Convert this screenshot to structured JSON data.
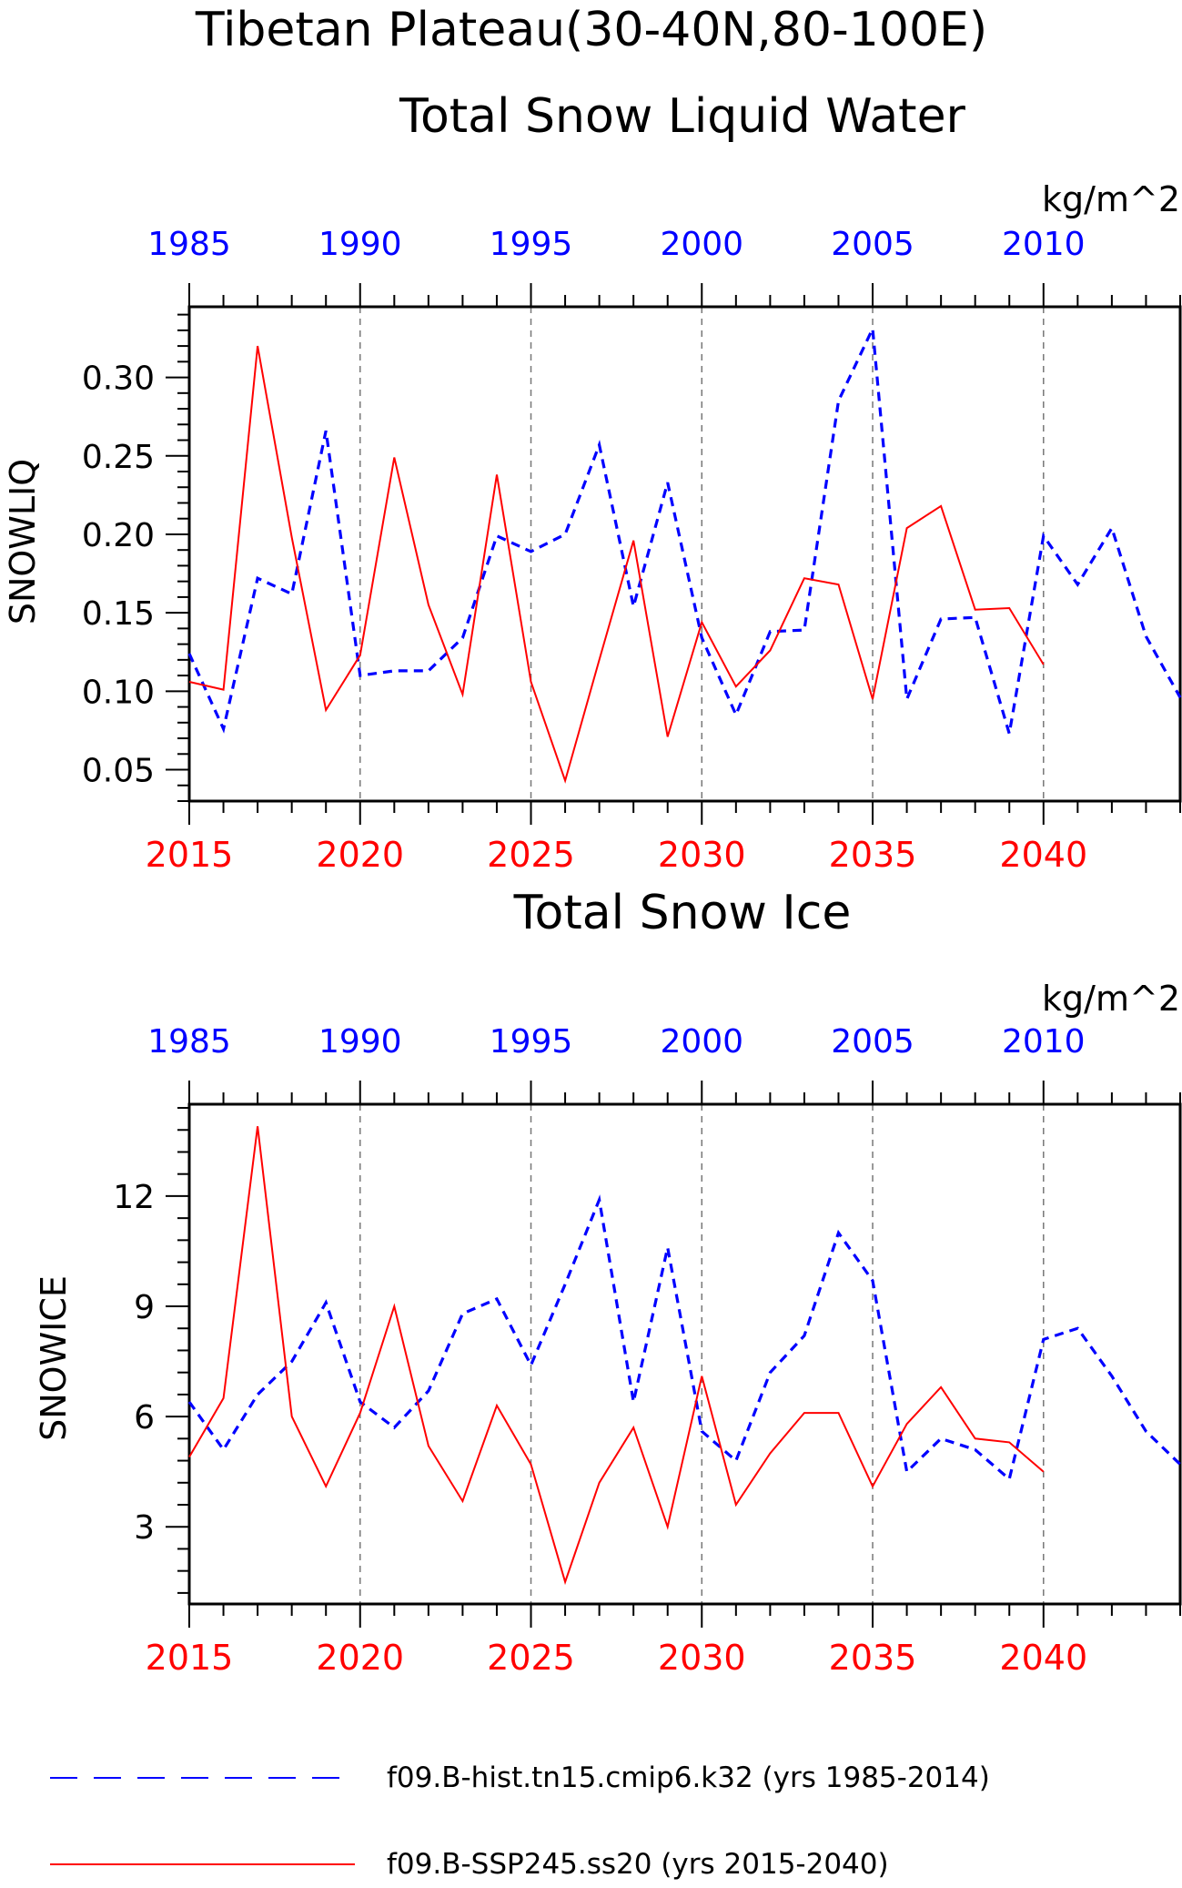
{
  "page": {
    "title_line1": "Tibetan Plateau(30-40N,80-100E)"
  },
  "chart_data": [
    {
      "type": "line",
      "title": "Total Snow Liquid Water",
      "units": "kg/m^2",
      "ylabel": "SNOWLIQ",
      "xlim": [
        2015,
        2044
      ],
      "ylim": [
        0.03,
        0.345
      ],
      "yticks": [
        0.05,
        0.1,
        0.15,
        0.2,
        0.25,
        0.3
      ],
      "ytick_labels": [
        "0.05",
        "0.10",
        "0.15",
        "0.20",
        "0.25",
        "0.30"
      ],
      "bottom_axis": {
        "ticks": [
          2015,
          2020,
          2025,
          2030,
          2035,
          2040
        ],
        "labels": [
          "2015",
          "2020",
          "2025",
          "2030",
          "2035",
          "2040"
        ],
        "color": "#ff0000"
      },
      "top_axis": {
        "ticks": [
          1985,
          1990,
          1995,
          2000,
          2005,
          2010
        ],
        "labels": [
          "1985",
          "1990",
          "1995",
          "2000",
          "2005",
          "2010"
        ],
        "color": "#0000ff",
        "offset": -30
      },
      "vertical_gridlines": [
        2020,
        2025,
        2030,
        2035,
        2040
      ],
      "series": [
        {
          "name": "f09.B-hist.tn15.cmip6.k32 (yrs 1985-2014)",
          "color": "#0000ff",
          "style": "dashed",
          "x": [
            1985,
            1986,
            1987,
            1988,
            1989,
            1990,
            1991,
            1992,
            1993,
            1994,
            1995,
            1996,
            1997,
            1998,
            1999,
            2000,
            2001,
            2002,
            2003,
            2004,
            2005,
            2006,
            2007,
            2008,
            2009,
            2010,
            2011,
            2012,
            2013,
            2014
          ],
          "values": [
            0.124,
            0.076,
            0.172,
            0.162,
            0.266,
            0.11,
            0.113,
            0.113,
            0.134,
            0.199,
            0.189,
            0.2,
            0.257,
            0.154,
            0.233,
            0.134,
            0.085,
            0.138,
            0.139,
            0.285,
            0.331,
            0.095,
            0.146,
            0.147,
            0.073,
            0.199,
            0.168,
            0.204,
            0.135,
            0.096
          ]
        },
        {
          "name": "f09.B-SSP245.ss20 (yrs 2015-2040)",
          "color": "#ff0000",
          "style": "solid",
          "x": [
            2015,
            2016,
            2017,
            2018,
            2019,
            2020,
            2021,
            2022,
            2023,
            2024,
            2025,
            2026,
            2027,
            2028,
            2029,
            2030,
            2031,
            2032,
            2033,
            2034,
            2035,
            2036,
            2037,
            2038,
            2039,
            2040
          ],
          "values": [
            0.106,
            0.101,
            0.32,
            0.198,
            0.088,
            0.123,
            0.249,
            0.155,
            0.098,
            0.238,
            0.106,
            0.043,
            0.12,
            0.196,
            0.071,
            0.144,
            0.103,
            0.126,
            0.172,
            0.168,
            0.095,
            0.204,
            0.218,
            0.152,
            0.153,
            0.117
          ]
        }
      ]
    },
    {
      "type": "line",
      "title": "Total Snow Ice",
      "units": "kg/m^2",
      "ylabel": "SNOWICE",
      "xlim": [
        2015,
        2044
      ],
      "ylim": [
        0.9,
        14.5
      ],
      "yticks": [
        3,
        6,
        9,
        12
      ],
      "ytick_labels": [
        "3",
        "6",
        "9",
        "12"
      ],
      "bottom_axis": {
        "ticks": [
          2015,
          2020,
          2025,
          2030,
          2035,
          2040
        ],
        "labels": [
          "2015",
          "2020",
          "2025",
          "2030",
          "2035",
          "2040"
        ],
        "color": "#ff0000"
      },
      "top_axis": {
        "ticks": [
          1985,
          1990,
          1995,
          2000,
          2005,
          2010
        ],
        "labels": [
          "1985",
          "1990",
          "1995",
          "2000",
          "2005",
          "2010"
        ],
        "color": "#0000ff",
        "offset": -30
      },
      "vertical_gridlines": [
        2020,
        2025,
        2030,
        2035,
        2040
      ],
      "series": [
        {
          "name": "f09.B-hist.tn15.cmip6.k32 (yrs 1985-2014)",
          "color": "#0000ff",
          "style": "dashed",
          "x": [
            1985,
            1986,
            1987,
            1988,
            1989,
            1990,
            1991,
            1992,
            1993,
            1994,
            1995,
            1996,
            1997,
            1998,
            1999,
            2000,
            2001,
            2002,
            2003,
            2004,
            2005,
            2006,
            2007,
            2008,
            2009,
            2010,
            2011,
            2012,
            2013,
            2014
          ],
          "values": [
            6.4,
            5.1,
            6.6,
            7.5,
            9.1,
            6.4,
            5.7,
            6.7,
            8.8,
            9.2,
            7.4,
            9.6,
            11.9,
            6.4,
            10.6,
            5.6,
            4.8,
            7.2,
            8.2,
            11.0,
            9.7,
            4.5,
            5.4,
            5.1,
            4.3,
            8.1,
            8.4,
            7.1,
            5.6,
            4.7
          ]
        },
        {
          "name": "f09.B-SSP245.ss20 (yrs 2015-2040)",
          "color": "#ff0000",
          "style": "solid",
          "x": [
            2015,
            2016,
            2017,
            2018,
            2019,
            2020,
            2021,
            2022,
            2023,
            2024,
            2025,
            2026,
            2027,
            2028,
            2029,
            2030,
            2031,
            2032,
            2033,
            2034,
            2035,
            2036,
            2037,
            2038,
            2039,
            2040
          ],
          "values": [
            4.9,
            6.5,
            13.9,
            6.0,
            4.1,
            6.1,
            9.0,
            5.2,
            3.7,
            6.3,
            4.7,
            1.5,
            4.2,
            5.7,
            3.0,
            7.1,
            3.6,
            5.0,
            6.1,
            6.1,
            4.1,
            5.8,
            6.8,
            5.4,
            5.3,
            4.5
          ]
        }
      ]
    }
  ],
  "legend": {
    "placement": "bottom",
    "items": [
      {
        "label": "f09.B-hist.tn15.cmip6.k32 (yrs 1985-2014)",
        "color": "#0000ff",
        "style": "dashed"
      },
      {
        "label": "f09.B-SSP245.ss20 (yrs 2015-2040)",
        "color": "#ff0000",
        "style": "solid"
      }
    ]
  }
}
